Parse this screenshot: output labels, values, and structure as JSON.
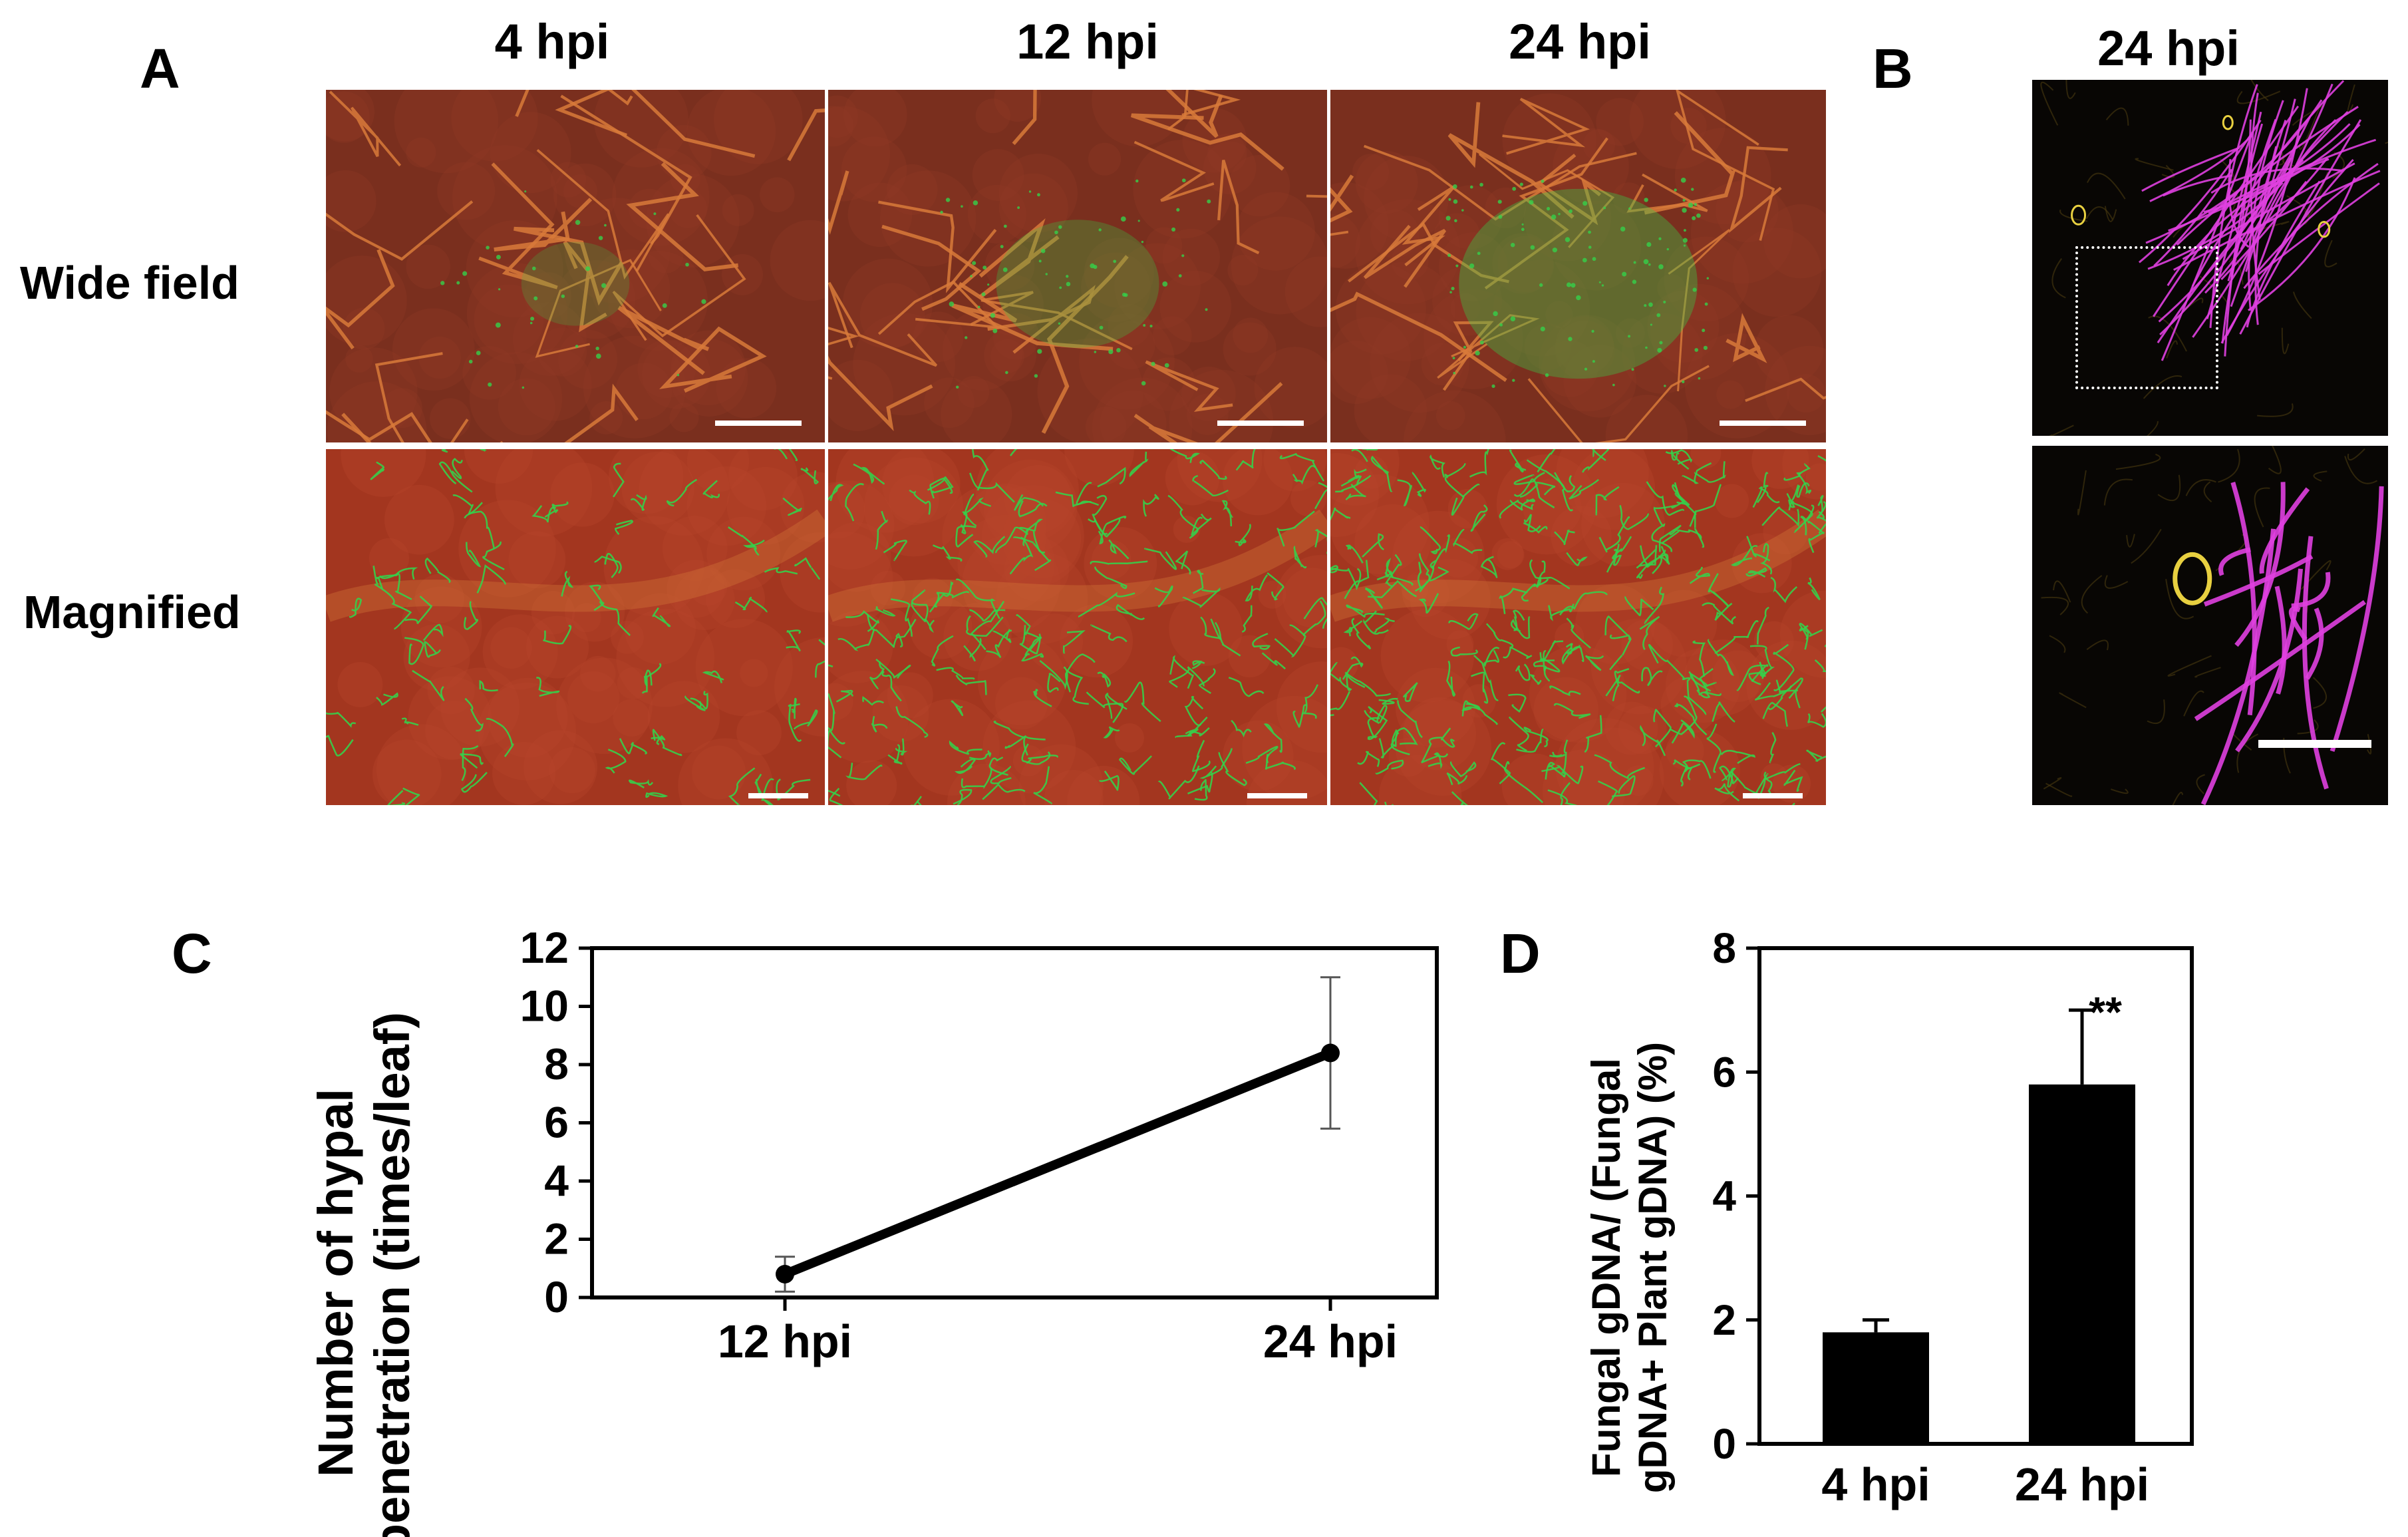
{
  "panel_letters": [
    "A",
    "B",
    "C",
    "D"
  ],
  "panel_a": {
    "columns": [
      "4 hpi",
      "12 hpi",
      "24 hpi"
    ],
    "rows": [
      "Wide field",
      "Magnified"
    ]
  },
  "panel_b": {
    "title": "24 hpi"
  },
  "colors": {
    "tissue_red": "#b8402a",
    "vein_orange": "#d87a3a",
    "hyphae_green": "#34d14a",
    "hyphae_magenta": "#e040e0",
    "stomata_yellow": "#e8d040"
  },
  "chart_data": [
    {
      "panel": "C",
      "type": "line",
      "categories": [
        "12 hpi",
        "24 hpi"
      ],
      "values": [
        0.8,
        8.4
      ],
      "errors": [
        0.6,
        2.6
      ],
      "ylabel_lines": [
        "Number of hypal",
        "penetration (times/leaf)"
      ],
      "ylim": [
        0,
        12
      ],
      "yticks": [
        "0",
        "2",
        "4",
        "6",
        "8",
        "10",
        "12"
      ]
    },
    {
      "panel": "D",
      "type": "bar",
      "categories": [
        "4 hpi",
        "24 hpi"
      ],
      "values": [
        1.8,
        5.8
      ],
      "errors": [
        0.2,
        1.2
      ],
      "annotation": "**",
      "ylabel_lines": [
        "Fungal gDNA/ (Fungal",
        "gDNA+ Plant gDNA) (%)"
      ],
      "ylim": [
        0,
        8
      ],
      "yticks": [
        "0",
        "2",
        "4",
        "6",
        "8"
      ]
    }
  ]
}
